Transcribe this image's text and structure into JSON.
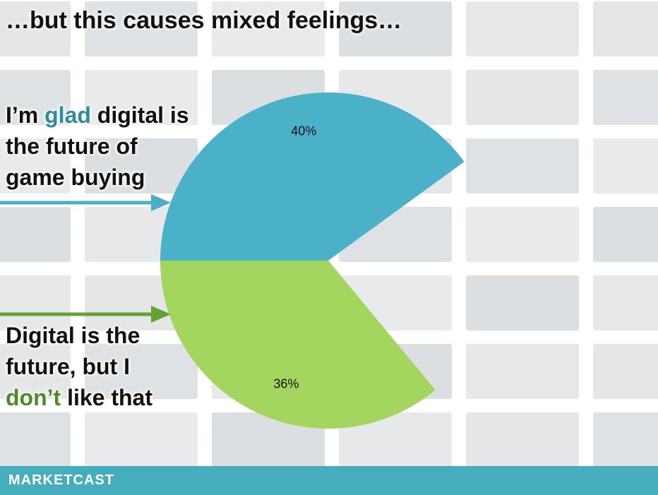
{
  "chart_data": {
    "type": "pie",
    "title": "…but this causes mixed feelings…",
    "categories": [
      [
        "I’m ",
        "glad",
        " digital is the future of game buying"
      ],
      [
        "Digital is the future, but I ",
        "don’t",
        " like that"
      ]
    ],
    "values": [
      40,
      36
    ],
    "value_labels": [
      "40%",
      "36%"
    ],
    "colors": [
      "#4bb1c9",
      "#a3d55f"
    ],
    "arrow_colors": [
      "#4aaec6",
      "#64a233"
    ],
    "highlight_colors": [
      "#2f8c9c",
      "#4e8a27"
    ],
    "brand": "MarketCast",
    "footer_color": "#45adbc"
  }
}
